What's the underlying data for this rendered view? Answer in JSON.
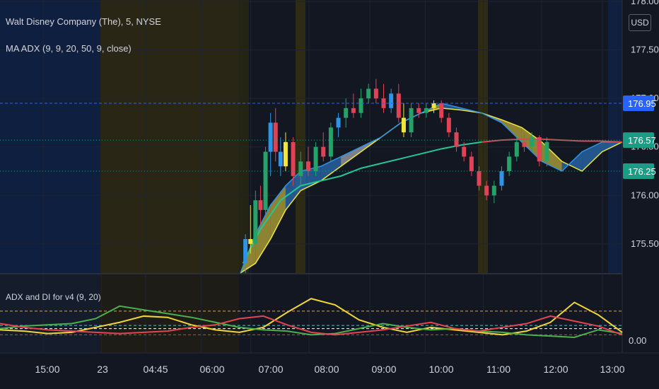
{
  "header": {
    "symbol_line": "Walt Disney Company (The), 5, NYSE",
    "indicator_line": "MA ADX (9, 9, 20, 50, 9, close)"
  },
  "currency_label": "USD",
  "sub_pane_title": "ADX and DI for v4 (9, 20)",
  "colors": {
    "background": "#131722",
    "grid": "#1f2433",
    "candle_blue": "#2f93e6",
    "candle_red": "#e04355",
    "candle_green": "#26a269",
    "candle_yellow": "#f0e63c",
    "ma_fill_yellow": "#b8a839",
    "ma_fill_blue": "#2b6cb3",
    "ma_fill_gray": "#a0a4ad",
    "ma50_line": "#24c792",
    "ma_red_line": "#e0444c",
    "adx_yellow": "#f0d63b",
    "di_green": "#4caf50",
    "di_red": "#e34650",
    "price_tag_blue": "#2962ff",
    "price_tag_teal": "#1b9c85"
  },
  "chart_data": [
    {
      "type": "line",
      "title": "Walt Disney Company (The), 5, NYSE",
      "indicator": "MA ADX (9, 9, 20, 50, 9, close)",
      "x_ticks": [
        "15:00",
        "23",
        "04:45",
        "06:00",
        "07:00",
        "08:00",
        "09:00",
        "10:00",
        "11:00",
        "12:00",
        "13:00"
      ],
      "y_ticks": [
        178.0,
        177.5,
        177.0,
        176.5,
        176.0,
        175.5
      ],
      "ylim": [
        175.2,
        178.0
      ],
      "price_tags": [
        {
          "label": "176.95",
          "value": 176.95,
          "color": "#2962ff"
        },
        {
          "label": "176.57",
          "value": 176.57,
          "color": "#1b9c85"
        },
        {
          "label": "176.25",
          "value": 176.25,
          "color": "#1b9c85"
        }
      ],
      "series": [
        {
          "value_key": "ma_fast",
          "x": [
            5.4,
            5.7,
            6.0,
            6.3,
            6.6,
            7.0,
            7.4,
            7.8,
            8.2,
            8.6,
            9.0,
            9.4,
            9.8,
            10.2,
            10.6,
            11.0,
            11.4,
            11.8,
            12.2,
            12.6,
            13.0
          ],
          "values": [
            175.2,
            175.6,
            175.9,
            176.1,
            176.25,
            176.3,
            176.4,
            176.5,
            176.6,
            176.75,
            176.85,
            176.95,
            176.9,
            176.85,
            176.75,
            176.55,
            176.35,
            176.25,
            176.45,
            176.55,
            176.55
          ]
        },
        {
          "value_key": "ma_slow",
          "x": [
            5.4,
            5.7,
            6.0,
            6.3,
            6.6,
            7.0,
            7.4,
            7.8,
            8.2,
            8.6,
            9.0,
            9.4,
            9.8,
            10.2,
            10.6,
            11.0,
            11.4,
            11.8,
            12.2,
            12.6,
            13.0
          ],
          "values": [
            175.2,
            175.3,
            175.55,
            175.85,
            176.05,
            176.15,
            176.3,
            176.45,
            176.6,
            176.75,
            176.85,
            176.9,
            176.88,
            176.85,
            176.78,
            176.7,
            176.55,
            176.35,
            176.25,
            176.45,
            176.55
          ]
        },
        {
          "value_key": "ma50",
          "x": [
            5.45,
            5.8,
            6.2,
            6.6,
            7.0,
            7.4,
            7.8,
            8.2,
            8.6,
            9.0,
            9.4,
            9.8,
            10.2,
            10.6,
            11.0,
            11.4,
            11.8,
            12.2,
            12.6,
            13.0
          ],
          "values": [
            175.3,
            175.65,
            175.95,
            176.1,
            176.15,
            176.2,
            176.28,
            176.33,
            176.38,
            176.43,
            176.48,
            176.52,
            176.55,
            176.57,
            176.58,
            176.58,
            176.57,
            176.56,
            176.56,
            176.55
          ]
        }
      ],
      "candles": [
        {
          "x": 5.5,
          "o": 175.3,
          "h": 175.6,
          "l": 175.2,
          "c": 175.55,
          "col": "blue"
        },
        {
          "x": 5.6,
          "o": 175.55,
          "h": 175.9,
          "l": 175.4,
          "c": 175.5,
          "col": "yellow"
        },
        {
          "x": 5.7,
          "o": 175.5,
          "h": 176.05,
          "l": 175.45,
          "c": 175.95,
          "col": "green"
        },
        {
          "x": 5.8,
          "o": 175.95,
          "h": 176.1,
          "l": 175.7,
          "c": 175.85,
          "col": "red"
        },
        {
          "x": 5.9,
          "o": 175.85,
          "h": 176.5,
          "l": 175.8,
          "c": 176.45,
          "col": "green"
        },
        {
          "x": 6.0,
          "o": 176.45,
          "h": 176.85,
          "l": 176.2,
          "c": 176.75,
          "col": "blue"
        },
        {
          "x": 6.1,
          "o": 176.75,
          "h": 176.9,
          "l": 176.35,
          "c": 176.45,
          "col": "red"
        },
        {
          "x": 6.2,
          "o": 176.45,
          "h": 176.6,
          "l": 176.2,
          "c": 176.3,
          "col": "blue"
        },
        {
          "x": 6.3,
          "o": 176.3,
          "h": 176.65,
          "l": 176.25,
          "c": 176.55,
          "col": "yellow"
        },
        {
          "x": 6.45,
          "o": 176.55,
          "h": 176.6,
          "l": 176.1,
          "c": 176.2,
          "col": "red"
        },
        {
          "x": 6.6,
          "o": 176.2,
          "h": 176.45,
          "l": 176.1,
          "c": 176.35,
          "col": "green"
        },
        {
          "x": 6.75,
          "o": 176.35,
          "h": 176.5,
          "l": 176.2,
          "c": 176.25,
          "col": "red"
        },
        {
          "x": 6.9,
          "o": 176.25,
          "h": 176.55,
          "l": 176.2,
          "c": 176.5,
          "col": "green"
        },
        {
          "x": 7.05,
          "o": 176.5,
          "h": 176.65,
          "l": 176.35,
          "c": 176.4,
          "col": "red"
        },
        {
          "x": 7.2,
          "o": 176.4,
          "h": 176.75,
          "l": 176.35,
          "c": 176.7,
          "col": "green"
        },
        {
          "x": 7.35,
          "o": 176.7,
          "h": 176.85,
          "l": 176.6,
          "c": 176.8,
          "col": "blue"
        },
        {
          "x": 7.5,
          "o": 176.8,
          "h": 177.0,
          "l": 176.7,
          "c": 176.9,
          "col": "green"
        },
        {
          "x": 7.65,
          "o": 176.9,
          "h": 177.05,
          "l": 176.8,
          "c": 176.85,
          "col": "red"
        },
        {
          "x": 7.8,
          "o": 176.85,
          "h": 177.1,
          "l": 176.8,
          "c": 177.0,
          "col": "green"
        },
        {
          "x": 7.95,
          "o": 177.0,
          "h": 177.15,
          "l": 176.95,
          "c": 177.1,
          "col": "green"
        },
        {
          "x": 8.1,
          "o": 177.1,
          "h": 177.2,
          "l": 176.95,
          "c": 177.0,
          "col": "red"
        },
        {
          "x": 8.25,
          "o": 177.0,
          "h": 177.15,
          "l": 176.85,
          "c": 176.9,
          "col": "red"
        },
        {
          "x": 8.4,
          "o": 176.9,
          "h": 177.1,
          "l": 176.85,
          "c": 177.05,
          "col": "blue"
        },
        {
          "x": 8.55,
          "o": 177.05,
          "h": 177.15,
          "l": 176.75,
          "c": 176.8,
          "col": "red"
        },
        {
          "x": 8.65,
          "o": 176.8,
          "h": 176.95,
          "l": 176.6,
          "c": 176.65,
          "col": "yellow"
        },
        {
          "x": 8.8,
          "o": 176.65,
          "h": 176.95,
          "l": 176.6,
          "c": 176.9,
          "col": "green"
        },
        {
          "x": 8.95,
          "o": 176.9,
          "h": 176.95,
          "l": 176.8,
          "c": 176.85,
          "col": "red"
        },
        {
          "x": 9.1,
          "o": 176.85,
          "h": 176.95,
          "l": 176.8,
          "c": 176.9,
          "col": "green"
        },
        {
          "x": 9.25,
          "o": 176.9,
          "h": 176.98,
          "l": 176.85,
          "c": 176.95,
          "col": "yellow"
        },
        {
          "x": 9.4,
          "o": 176.95,
          "h": 176.98,
          "l": 176.75,
          "c": 176.8,
          "col": "red"
        },
        {
          "x": 9.55,
          "o": 176.8,
          "h": 176.85,
          "l": 176.6,
          "c": 176.65,
          "col": "red"
        },
        {
          "x": 9.7,
          "o": 176.65,
          "h": 176.7,
          "l": 176.45,
          "c": 176.5,
          "col": "red"
        },
        {
          "x": 9.85,
          "o": 176.5,
          "h": 176.55,
          "l": 176.35,
          "c": 176.4,
          "col": "red"
        },
        {
          "x": 10.0,
          "o": 176.4,
          "h": 176.45,
          "l": 176.2,
          "c": 176.25,
          "col": "red"
        },
        {
          "x": 10.15,
          "o": 176.25,
          "h": 176.3,
          "l": 176.05,
          "c": 176.1,
          "col": "red"
        },
        {
          "x": 10.3,
          "o": 176.1,
          "h": 176.15,
          "l": 175.95,
          "c": 176.0,
          "col": "red"
        },
        {
          "x": 10.45,
          "o": 176.0,
          "h": 176.15,
          "l": 175.92,
          "c": 176.1,
          "col": "green"
        },
        {
          "x": 10.6,
          "o": 176.1,
          "h": 176.3,
          "l": 176.05,
          "c": 176.25,
          "col": "blue"
        },
        {
          "x": 10.75,
          "o": 176.25,
          "h": 176.45,
          "l": 176.2,
          "c": 176.4,
          "col": "green"
        },
        {
          "x": 10.9,
          "o": 176.4,
          "h": 176.6,
          "l": 176.35,
          "c": 176.55,
          "col": "green"
        },
        {
          "x": 11.05,
          "o": 176.55,
          "h": 176.65,
          "l": 176.45,
          "c": 176.5,
          "col": "red"
        },
        {
          "x": 11.2,
          "o": 176.5,
          "h": 176.65,
          "l": 176.45,
          "c": 176.6,
          "col": "green"
        },
        {
          "x": 11.35,
          "o": 176.6,
          "h": 176.62,
          "l": 176.3,
          "c": 176.35,
          "col": "red"
        },
        {
          "x": 11.5,
          "o": 176.35,
          "h": 176.6,
          "l": 176.3,
          "c": 176.55,
          "col": "green"
        }
      ]
    },
    {
      "type": "line",
      "title": "ADX and DI for v4 (9, 20)",
      "y_ticks": [
        0.0
      ],
      "ylim": [
        -2,
        100
      ],
      "x": [
        0,
        0.5,
        1,
        1.5,
        2,
        2.5,
        3,
        3.5,
        4,
        4.5,
        5,
        5.5,
        6,
        6.5,
        7,
        7.5,
        8,
        8.5,
        9,
        9.5,
        10,
        10.5,
        11,
        11.5,
        12,
        12.5,
        13
      ],
      "series": [
        {
          "value_key": "adx",
          "values": [
            18,
            16,
            12,
            14,
            22,
            30,
            40,
            38,
            26,
            18,
            14,
            22,
            46,
            68,
            58,
            34,
            22,
            14,
            22,
            18,
            14,
            10,
            16,
            30,
            62,
            42,
            14
          ]
        },
        {
          "value_key": "di_plus",
          "values": [
            20,
            24,
            26,
            28,
            36,
            56,
            50,
            44,
            38,
            30,
            22,
            18,
            16,
            10,
            12,
            20,
            28,
            22,
            18,
            20,
            16,
            14,
            10,
            8,
            6,
            18,
            12
          ]
        },
        {
          "value_key": "di_minus",
          "values": [
            28,
            22,
            18,
            16,
            14,
            12,
            14,
            16,
            22,
            26,
            36,
            40,
            26,
            14,
            10,
            14,
            18,
            24,
            30,
            20,
            16,
            22,
            28,
            40,
            32,
            24,
            10
          ]
        }
      ],
      "ref_lines": [
        {
          "value": 48,
          "color": "#f0a020"
        },
        {
          "value": 25,
          "color": "#3fc9d4"
        },
        {
          "value": 20,
          "color": "#ffffff"
        },
        {
          "value": 10,
          "color": "#e03a55"
        }
      ]
    }
  ]
}
